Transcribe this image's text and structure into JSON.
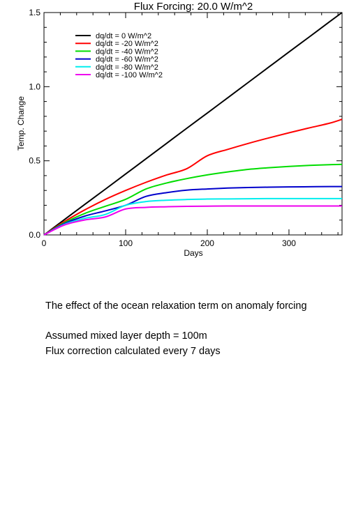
{
  "chart_data": {
    "type": "line",
    "title": "Flux Forcing: 20.0 W/m^2",
    "xlabel": "Days",
    "ylabel": "Temp. Change",
    "xlim": [
      0,
      365
    ],
    "ylim": [
      0,
      1.5
    ],
    "xticks": [
      0,
      100,
      200,
      300
    ],
    "xtick_labels": [
      "0",
      "100",
      "200",
      "300"
    ],
    "yticks": [
      0,
      0.5,
      1.0,
      1.5
    ],
    "ytick_labels": [
      "0.0",
      "0.5",
      "1.0",
      "1.5"
    ],
    "grid": false,
    "legend": "top-left",
    "x": [
      0,
      25,
      50,
      75,
      100,
      125,
      150,
      175,
      200,
      225,
      250,
      275,
      300,
      325,
      350,
      365
    ],
    "series": [
      {
        "name": "dq/dt = 0 W/m^2",
        "color": "#000000",
        "values": [
          0,
          0.103,
          0.206,
          0.308,
          0.411,
          0.514,
          0.617,
          0.72,
          0.822,
          0.925,
          1.028,
          1.131,
          1.234,
          1.336,
          1.439,
          1.5
        ]
      },
      {
        "name": "dq/dt = -20 W/m^2",
        "color": "#ff0000",
        "values": [
          0,
          0.09,
          0.169,
          0.239,
          0.3,
          0.355,
          0.404,
          0.447,
          0.534,
          0.577,
          0.617,
          0.654,
          0.689,
          0.722,
          0.754,
          0.78
        ]
      },
      {
        "name": "dq/dt = -40 W/m^2",
        "color": "#00dd00",
        "values": [
          0,
          0.082,
          0.145,
          0.193,
          0.24,
          0.31,
          0.35,
          0.38,
          0.405,
          0.425,
          0.442,
          0.453,
          0.462,
          0.469,
          0.474,
          0.476
        ]
      },
      {
        "name": "dq/dt = -60 W/m^2",
        "color": "#0000cc",
        "values": [
          0,
          0.076,
          0.127,
          0.162,
          0.2,
          0.26,
          0.285,
          0.302,
          0.31,
          0.316,
          0.32,
          0.322,
          0.324,
          0.325,
          0.326,
          0.326
        ]
      },
      {
        "name": "dq/dt = -80 W/m^2",
        "color": "#00eeee",
        "values": [
          0,
          0.071,
          0.112,
          0.138,
          0.2,
          0.225,
          0.234,
          0.239,
          0.242,
          0.243,
          0.244,
          0.245,
          0.245,
          0.245,
          0.245,
          0.245
        ]
      },
      {
        "name": "dq/dt = -100 W/m^2",
        "color": "#ee00ee",
        "values": [
          0,
          0.067,
          0.101,
          0.121,
          0.175,
          0.186,
          0.19,
          0.193,
          0.194,
          0.195,
          0.195,
          0.195,
          0.195,
          0.195,
          0.195,
          0.195
        ]
      }
    ]
  },
  "captions": {
    "line1": "The effect of the ocean relaxation term on anomaly forcing",
    "line2": "Assumed mixed layer depth = 100m",
    "line3": "Flux correction calculated every 7 days"
  }
}
